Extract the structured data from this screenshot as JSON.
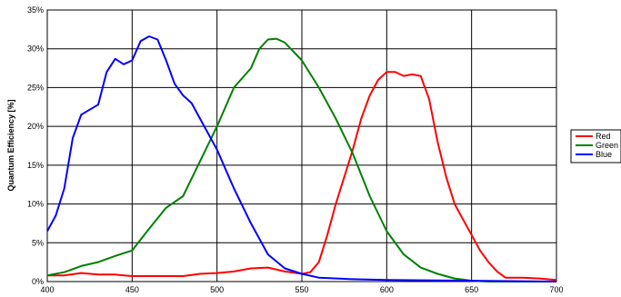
{
  "chart_data": {
    "type": "line",
    "title": "",
    "xlabel": "",
    "ylabel": "Quantum Efficiency [%]",
    "xlim": [
      400,
      700
    ],
    "ylim": [
      0,
      35
    ],
    "x_ticks": [
      "400",
      "450",
      "500",
      "550",
      "600",
      "650",
      "700"
    ],
    "x_tick_values": [
      400,
      450,
      500,
      550,
      600,
      650,
      700
    ],
    "y_ticks": [
      "0%",
      "5%",
      "10%",
      "15%",
      "20%",
      "25%",
      "30%",
      "35%"
    ],
    "y_tick_values": [
      0,
      5,
      10,
      15,
      20,
      25,
      30,
      35
    ],
    "grid": true,
    "legend_position": "right",
    "series": [
      {
        "name": "Red",
        "color": "#ff0000",
        "points": [
          [
            400,
            0.8
          ],
          [
            410,
            0.8
          ],
          [
            420,
            1.1
          ],
          [
            430,
            0.9
          ],
          [
            440,
            0.9
          ],
          [
            450,
            0.7
          ],
          [
            460,
            0.7
          ],
          [
            470,
            0.7
          ],
          [
            480,
            0.7
          ],
          [
            490,
            1.0
          ],
          [
            500,
            1.1
          ],
          [
            510,
            1.3
          ],
          [
            520,
            1.7
          ],
          [
            530,
            1.8
          ],
          [
            540,
            1.3
          ],
          [
            550,
            1.0
          ],
          [
            555,
            1.2
          ],
          [
            560,
            2.5
          ],
          [
            565,
            6.0
          ],
          [
            570,
            10.0
          ],
          [
            575,
            13.5
          ],
          [
            580,
            17.0
          ],
          [
            585,
            21.0
          ],
          [
            590,
            24.0
          ],
          [
            595,
            26.0
          ],
          [
            600,
            27.0
          ],
          [
            605,
            27.0
          ],
          [
            610,
            26.5
          ],
          [
            615,
            26.7
          ],
          [
            620,
            26.5
          ],
          [
            625,
            23.5
          ],
          [
            630,
            18.0
          ],
          [
            635,
            13.5
          ],
          [
            640,
            10.0
          ],
          [
            645,
            8.0
          ],
          [
            650,
            6.0
          ],
          [
            655,
            4.0
          ],
          [
            660,
            2.5
          ],
          [
            665,
            1.3
          ],
          [
            670,
            0.5
          ],
          [
            680,
            0.5
          ],
          [
            690,
            0.4
          ],
          [
            700,
            0.2
          ]
        ]
      },
      {
        "name": "Green",
        "color": "#008000",
        "points": [
          [
            400,
            0.8
          ],
          [
            410,
            1.2
          ],
          [
            420,
            2.0
          ],
          [
            430,
            2.5
          ],
          [
            440,
            3.3
          ],
          [
            450,
            4.0
          ],
          [
            460,
            6.8
          ],
          [
            470,
            9.5
          ],
          [
            480,
            11.0
          ],
          [
            490,
            15.5
          ],
          [
            500,
            20.0
          ],
          [
            510,
            25.0
          ],
          [
            520,
            27.5
          ],
          [
            525,
            30.0
          ],
          [
            530,
            31.2
          ],
          [
            535,
            31.3
          ],
          [
            540,
            30.8
          ],
          [
            550,
            28.5
          ],
          [
            560,
            25.0
          ],
          [
            570,
            21.0
          ],
          [
            580,
            16.5
          ],
          [
            590,
            11.0
          ],
          [
            600,
            6.5
          ],
          [
            610,
            3.5
          ],
          [
            620,
            1.8
          ],
          [
            630,
            1.0
          ],
          [
            640,
            0.4
          ],
          [
            650,
            0.1
          ],
          [
            660,
            0.0
          ],
          [
            700,
            0.0
          ]
        ]
      },
      {
        "name": "Blue",
        "color": "#0000ff",
        "points": [
          [
            400,
            6.5
          ],
          [
            405,
            8.5
          ],
          [
            410,
            12.0
          ],
          [
            415,
            18.5
          ],
          [
            420,
            21.5
          ],
          [
            430,
            22.8
          ],
          [
            435,
            27.0
          ],
          [
            440,
            28.7
          ],
          [
            445,
            28.0
          ],
          [
            450,
            28.5
          ],
          [
            455,
            31.0
          ],
          [
            460,
            31.6
          ],
          [
            465,
            31.2
          ],
          [
            470,
            28.5
          ],
          [
            475,
            25.5
          ],
          [
            480,
            24.0
          ],
          [
            485,
            23.0
          ],
          [
            490,
            21.0
          ],
          [
            500,
            17.0
          ],
          [
            510,
            12.0
          ],
          [
            520,
            7.5
          ],
          [
            530,
            3.5
          ],
          [
            540,
            1.7
          ],
          [
            550,
            1.0
          ],
          [
            560,
            0.5
          ],
          [
            580,
            0.3
          ],
          [
            600,
            0.2
          ],
          [
            650,
            0.1
          ],
          [
            700,
            0.0
          ]
        ]
      }
    ]
  }
}
